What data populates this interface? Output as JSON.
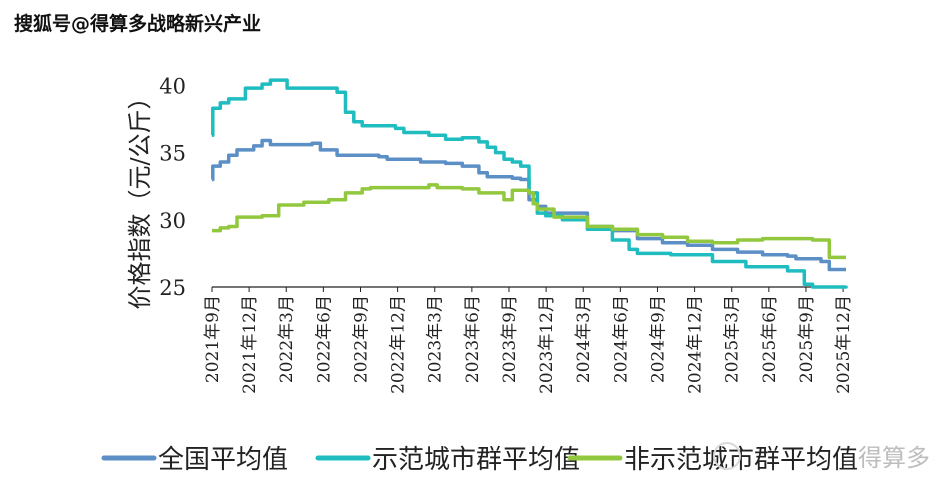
{
  "watermark_top": "搜狐号@得算多战略新兴产业",
  "watermark_bottom": "得算多",
  "chart_data": {
    "type": "line",
    "ylabel": "价格指数（元/公斤）",
    "xlabel": "",
    "ylim": [
      25,
      41
    ],
    "yticks": [
      25,
      30,
      35,
      40
    ],
    "xticks": [
      "2021年9月",
      "2021年12月",
      "2022年3月",
      "2022年6月",
      "2022年9月",
      "2022年12月",
      "2023年3月",
      "2023年6月",
      "2023年9月",
      "2023年12月",
      "2024年3月",
      "2024年6月",
      "2024年9月",
      "2024年12月",
      "2025年3月",
      "2025年6月",
      "2025年9月",
      "2025年12月"
    ],
    "legend_position": "bottom",
    "series": [
      {
        "name": "全国平均值",
        "color": "#5b8fc6",
        "points": [
          [
            0,
            33.0
          ],
          [
            0.1,
            34.0
          ],
          [
            1,
            34.3
          ],
          [
            2,
            34.8
          ],
          [
            3,
            35.2
          ],
          [
            5,
            35.5
          ],
          [
            6,
            35.9
          ],
          [
            7,
            35.6
          ],
          [
            12,
            35.7
          ],
          [
            13,
            35.2
          ],
          [
            15,
            34.8
          ],
          [
            20,
            34.7
          ],
          [
            21,
            34.5
          ],
          [
            25,
            34.3
          ],
          [
            28,
            34.2
          ],
          [
            30,
            34.0
          ],
          [
            32,
            33.5
          ],
          [
            33,
            33.2
          ],
          [
            36,
            33.1
          ],
          [
            37,
            33.0
          ],
          [
            38,
            31.5
          ],
          [
            39,
            31.0
          ],
          [
            40,
            30.5
          ],
          [
            45,
            29.5
          ],
          [
            48,
            29.2
          ],
          [
            51,
            28.6
          ],
          [
            54,
            28.3
          ],
          [
            57,
            28.1
          ],
          [
            60,
            27.8
          ],
          [
            63,
            27.6
          ],
          [
            66,
            27.4
          ],
          [
            69,
            27.3
          ],
          [
            70,
            27.1
          ],
          [
            73,
            26.9
          ],
          [
            74,
            26.3
          ],
          [
            76,
            26.3
          ]
        ]
      },
      {
        "name": "示范城市群平均值",
        "color": "#1fbdc0",
        "points": [
          [
            0,
            36.3
          ],
          [
            0.1,
            38.3
          ],
          [
            1,
            38.7
          ],
          [
            2,
            39.0
          ],
          [
            4,
            39.8
          ],
          [
            6,
            40.1
          ],
          [
            7,
            40.4
          ],
          [
            9,
            39.8
          ],
          [
            12,
            39.8
          ],
          [
            15,
            39.5
          ],
          [
            16,
            38.0
          ],
          [
            17,
            37.3
          ],
          [
            18,
            37.0
          ],
          [
            22,
            36.8
          ],
          [
            23,
            36.5
          ],
          [
            26,
            36.3
          ],
          [
            28,
            36.0
          ],
          [
            30,
            36.1
          ],
          [
            32,
            35.8
          ],
          [
            33,
            35.4
          ],
          [
            34,
            35.0
          ],
          [
            35,
            34.5
          ],
          [
            36,
            34.3
          ],
          [
            37,
            34.0
          ],
          [
            38,
            32.0
          ],
          [
            39,
            30.5
          ],
          [
            40,
            30.3
          ],
          [
            42,
            30.0
          ],
          [
            45,
            29.3
          ],
          [
            48,
            28.5
          ],
          [
            50,
            27.8
          ],
          [
            51,
            27.5
          ],
          [
            55,
            27.4
          ],
          [
            60,
            26.9
          ],
          [
            64,
            26.5
          ],
          [
            69,
            26.2
          ],
          [
            71,
            25.2
          ],
          [
            72,
            25.0
          ],
          [
            76,
            25.1
          ]
        ]
      },
      {
        "name": "非示范城市群平均值",
        "color": "#92c83e",
        "points": [
          [
            0,
            29.2
          ],
          [
            1,
            29.4
          ],
          [
            2,
            29.5
          ],
          [
            3,
            30.2
          ],
          [
            6,
            30.3
          ],
          [
            8,
            31.1
          ],
          [
            11,
            31.3
          ],
          [
            14,
            31.5
          ],
          [
            16,
            32.0
          ],
          [
            18,
            32.3
          ],
          [
            19,
            32.4
          ],
          [
            25,
            32.4
          ],
          [
            26,
            32.6
          ],
          [
            27,
            32.4
          ],
          [
            30,
            32.3
          ],
          [
            32,
            32.0
          ],
          [
            35,
            31.5
          ],
          [
            36,
            32.2
          ],
          [
            38,
            32.0
          ],
          [
            38.5,
            31.2
          ],
          [
            39,
            30.8
          ],
          [
            41,
            30.2
          ],
          [
            45,
            29.5
          ],
          [
            48,
            29.3
          ],
          [
            51,
            28.9
          ],
          [
            54,
            28.7
          ],
          [
            57,
            28.4
          ],
          [
            60,
            28.3
          ],
          [
            63,
            28.5
          ],
          [
            66,
            28.6
          ],
          [
            69,
            28.6
          ],
          [
            72,
            28.5
          ],
          [
            74,
            27.2
          ],
          [
            76,
            27.2
          ]
        ]
      }
    ]
  }
}
